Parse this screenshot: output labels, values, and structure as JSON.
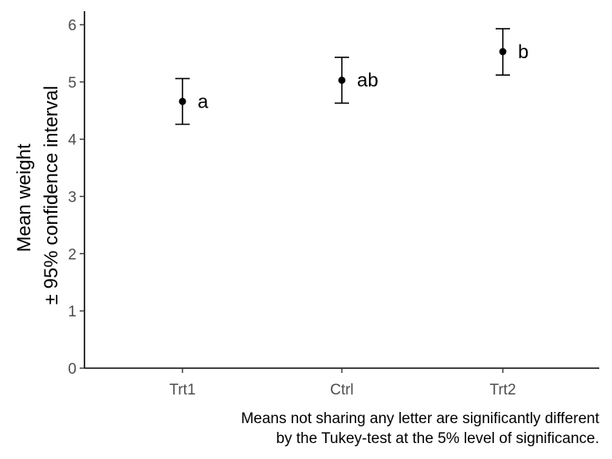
{
  "chart_data": {
    "type": "scatter",
    "title": "",
    "xlabel": "",
    "ylabel_lines": [
      "Mean weight",
      "± 95% confidence interval"
    ],
    "categories": [
      "Trt1",
      "Ctrl",
      "Trt2"
    ],
    "means": [
      4.66,
      5.03,
      5.53
    ],
    "ci_lower": [
      4.26,
      4.63,
      5.12
    ],
    "ci_upper": [
      5.06,
      5.43,
      5.93
    ],
    "letters": [
      "a",
      "ab",
      "b"
    ],
    "ylim": [
      0,
      6.2
    ],
    "yticks": [
      "0",
      "1",
      "2",
      "3",
      "4",
      "5",
      "6"
    ],
    "grid": false,
    "caption_lines": [
      "Means not sharing any letter are significantly different",
      "by the Tukey-test at the 5% level of significance."
    ]
  }
}
